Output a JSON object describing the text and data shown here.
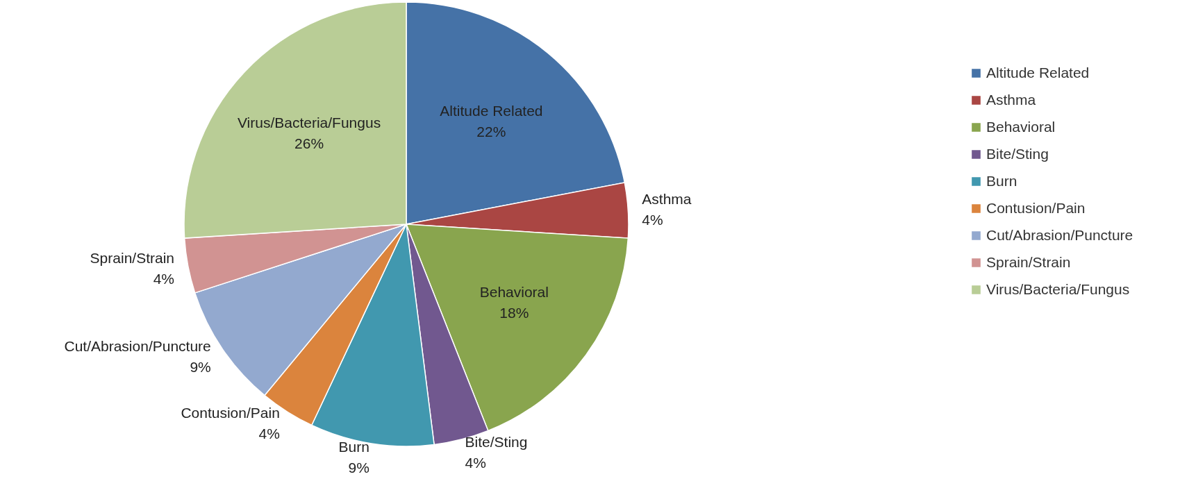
{
  "chart_data": {
    "type": "pie",
    "categories": [
      "Altitude Related",
      "Asthma",
      "Behavioral",
      "Bite/Sting",
      "Burn",
      "Contusion/Pain",
      "Cut/Abrasion/Puncture",
      "Sprain/Strain",
      "Virus/Bacteria/Fungus"
    ],
    "values": [
      22,
      4,
      18,
      4,
      9,
      4,
      9,
      4,
      26
    ],
    "value_labels": [
      "22%",
      "4%",
      "18%",
      "4%",
      "9%",
      "4%",
      "9%",
      "4%",
      "26%"
    ],
    "colors": [
      "#4572a7",
      "#aa4643",
      "#89a54e",
      "#71588f",
      "#4198af",
      "#db843d",
      "#93a9cf",
      "#d19392",
      "#b9cd96"
    ],
    "legend": "right"
  }
}
